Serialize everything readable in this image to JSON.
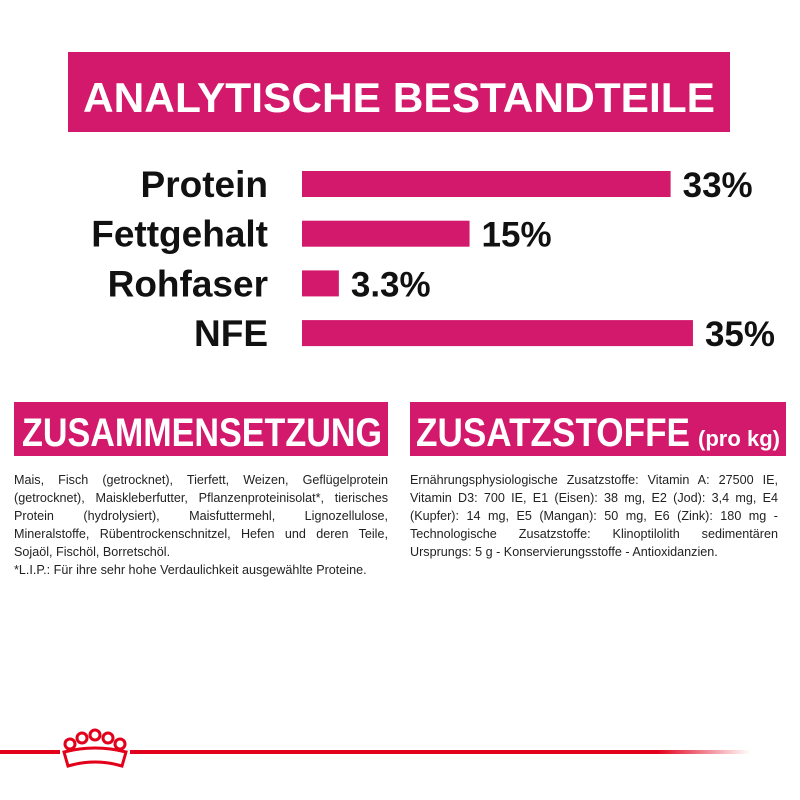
{
  "chart_data": {
    "type": "bar",
    "title": "ANALYTISCHE BESTANDTEILE",
    "categories": [
      "Protein",
      "Fettgehalt",
      "Rohfaser",
      "NFE"
    ],
    "values": [
      33,
      15,
      3.3,
      35
    ],
    "value_labels": [
      "33%",
      "15%",
      "3.3%",
      "35%"
    ],
    "color": "#d2196b"
  },
  "composition": {
    "title": "ZUSAMMENSETZUNG",
    "paragraphs": [
      "Mais, Fisch (getrocknet), Tierfett, Weizen, Geflügelprotein (getrocknet), Maiskleberfutter, Pflanzenproteinisolat*, tierisches Protein (hydrolysiert), Maisfuttermehl, Lignozellulose, Mineralstoffe, Rübentrockenschnitzel, Hefen und deren Teile, Sojaöl, Fischöl, Borretschöl.",
      "*L.I.P.: Für ihre sehr hohe Verdaulichkeit ausgewählte Proteine."
    ]
  },
  "additives": {
    "title": "ZUSATZSTOFFE",
    "subtitle": "(pro kg)",
    "text": "Ernährungsphysiologische Zusatzstoffe: Vitamin A: 27500 IE, Vitamin D3: 700 IE, E1 (Eisen): 38 mg, E2 (Jod): 3,4 mg, E4 (Kupfer): 14 mg, E5 (Mangan): 50 mg, E6 (Zink): 180 mg - Technologische Zusatzstoffe: Klinoptilolith sedimentären Ursprungs: 5 g - Konservierungsstoffe - Antioxidanzien."
  }
}
